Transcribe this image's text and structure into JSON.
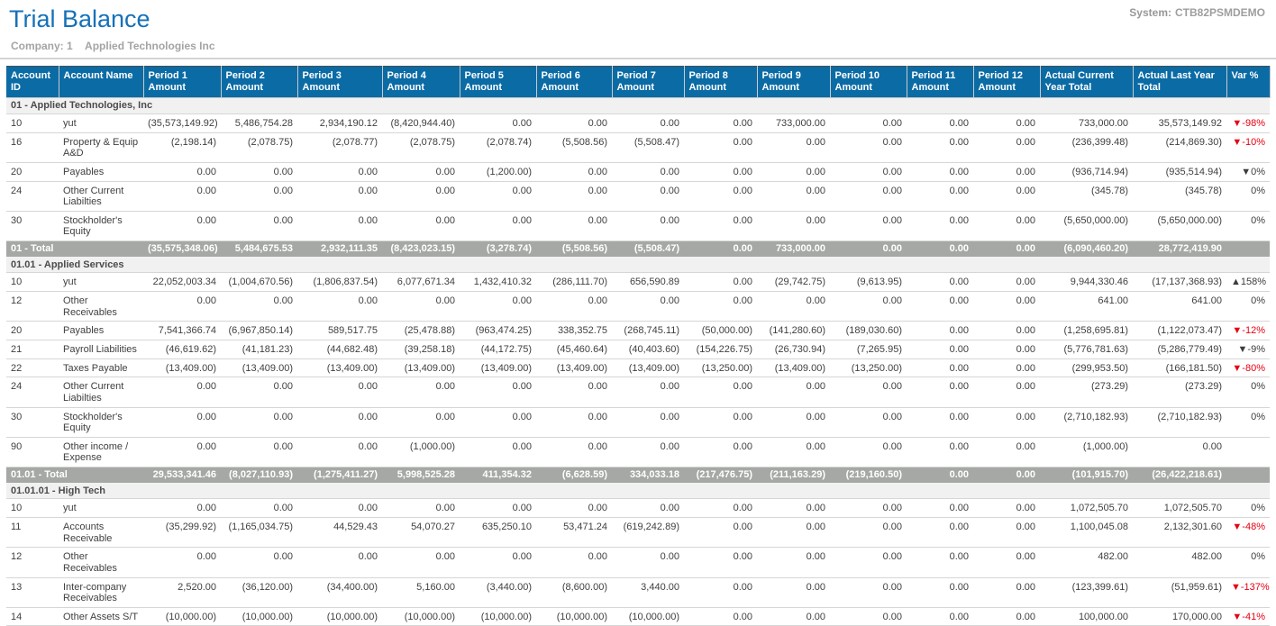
{
  "page": {
    "title": "Trial Balance",
    "system_label": "System:",
    "system_value": "CTB82PSMDEMO",
    "company_label": "Company:",
    "company_number": "1",
    "company_name": "Applied Technologies Inc"
  },
  "colors": {
    "title_blue": "#1571b8",
    "header_bg": "#0b6ba5",
    "total_row_bg": "#a5a8a5",
    "group_row_bg": "#f1f1f1",
    "negative_var_red": "#e60012",
    "muted_gray": "#a0a0a0"
  },
  "table": {
    "columns": [
      "Account ID",
      "Account Name",
      "Period 1 Amount",
      "Period 2 Amount",
      "Period 3 Amount",
      "Period 4 Amount",
      "Period 5 Amount",
      "Period 6 Amount",
      "Period 7 Amount",
      "Period 8 Amount",
      "Period 9 Amount",
      "Period 10 Amount",
      "Period 11 Amount",
      "Period 12 Amount",
      "Actual Current Year Total",
      "Actual Last Year Total",
      "Var %"
    ],
    "groups": [
      {
        "header": "01 - Applied Technologies, Inc",
        "rows": [
          {
            "id": "10",
            "name": "yut",
            "periods": [
              "(35,573,149.92)",
              "5,486,754.28",
              "2,934,190.12",
              "(8,420,944.40)",
              "0.00",
              "0.00",
              "0.00",
              "0.00",
              "733,000.00",
              "0.00",
              "0.00",
              "0.00"
            ],
            "current_year_total": "733,000.00",
            "last_year_total": "35,573,149.92",
            "var": {
              "text": "▼-98%",
              "red": true
            }
          },
          {
            "id": "16",
            "name": "Property & Equip A&D",
            "periods": [
              "(2,198.14)",
              "(2,078.75)",
              "(2,078.77)",
              "(2,078.75)",
              "(2,078.74)",
              "(5,508.56)",
              "(5,508.47)",
              "0.00",
              "0.00",
              "0.00",
              "0.00",
              "0.00"
            ],
            "current_year_total": "(236,399.48)",
            "last_year_total": "(214,869.30)",
            "var": {
              "text": "▼-10%",
              "red": true
            }
          },
          {
            "id": "20",
            "name": "Payables",
            "periods": [
              "0.00",
              "0.00",
              "0.00",
              "0.00",
              "(1,200.00)",
              "0.00",
              "0.00",
              "0.00",
              "0.00",
              "0.00",
              "0.00",
              "0.00"
            ],
            "current_year_total": "(936,714.94)",
            "last_year_total": "(935,514.94)",
            "var": {
              "text": "▼0%",
              "red": false
            }
          },
          {
            "id": "24",
            "name": "Other Current Liabilties",
            "periods": [
              "0.00",
              "0.00",
              "0.00",
              "0.00",
              "0.00",
              "0.00",
              "0.00",
              "0.00",
              "0.00",
              "0.00",
              "0.00",
              "0.00"
            ],
            "current_year_total": "(345.78)",
            "last_year_total": "(345.78)",
            "var": {
              "text": "0%",
              "red": false
            }
          },
          {
            "id": "30",
            "name": "Stockholder's Equity",
            "periods": [
              "0.00",
              "0.00",
              "0.00",
              "0.00",
              "0.00",
              "0.00",
              "0.00",
              "0.00",
              "0.00",
              "0.00",
              "0.00",
              "0.00"
            ],
            "current_year_total": "(5,650,000.00)",
            "last_year_total": "(5,650,000.00)",
            "var": {
              "text": "0%",
              "red": false
            }
          }
        ],
        "total": {
          "label": "01 - Total",
          "periods": [
            "(35,575,348.06)",
            "5,484,675.53",
            "2,932,111.35",
            "(8,423,023.15)",
            "(3,278.74)",
            "(5,508.56)",
            "(5,508.47)",
            "0.00",
            "733,000.00",
            "0.00",
            "0.00",
            "0.00"
          ],
          "current_year_total": "(6,090,460.20)",
          "last_year_total": "28,772,419.90",
          "var": null
        }
      },
      {
        "header": "01.01 - Applied Services",
        "rows": [
          {
            "id": "10",
            "name": "yut",
            "periods": [
              "22,052,003.34",
              "(1,004,670.56)",
              "(1,806,837.54)",
              "6,077,671.34",
              "1,432,410.32",
              "(286,111.70)",
              "656,590.89",
              "0.00",
              "(29,742.75)",
              "(9,613.95)",
              "0.00",
              "0.00"
            ],
            "current_year_total": "9,944,330.46",
            "last_year_total": "(17,137,368.93)",
            "var": {
              "text": "▲158%",
              "red": false
            }
          },
          {
            "id": "12",
            "name": "Other Receivables",
            "periods": [
              "0.00",
              "0.00",
              "0.00",
              "0.00",
              "0.00",
              "0.00",
              "0.00",
              "0.00",
              "0.00",
              "0.00",
              "0.00",
              "0.00"
            ],
            "current_year_total": "641.00",
            "last_year_total": "641.00",
            "var": {
              "text": "0%",
              "red": false
            }
          },
          {
            "id": "20",
            "name": "Payables",
            "periods": [
              "7,541,366.74",
              "(6,967,850.14)",
              "589,517.75",
              "(25,478.88)",
              "(963,474.25)",
              "338,352.75",
              "(268,745.11)",
              "(50,000.00)",
              "(141,280.60)",
              "(189,030.60)",
              "0.00",
              "0.00"
            ],
            "current_year_total": "(1,258,695.81)",
            "last_year_total": "(1,122,073.47)",
            "var": {
              "text": "▼-12%",
              "red": true
            }
          },
          {
            "id": "21",
            "name": "Payroll Liabilities",
            "periods": [
              "(46,619.62)",
              "(41,181.23)",
              "(44,682.48)",
              "(39,258.18)",
              "(44,172.75)",
              "(45,460.64)",
              "(40,403.60)",
              "(154,226.75)",
              "(26,730.94)",
              "(7,265.95)",
              "0.00",
              "0.00"
            ],
            "current_year_total": "(5,776,781.63)",
            "last_year_total": "(5,286,779.49)",
            "var": {
              "text": "▼-9%",
              "red": false
            }
          },
          {
            "id": "22",
            "name": "Taxes Payable",
            "periods": [
              "(13,409.00)",
              "(13,409.00)",
              "(13,409.00)",
              "(13,409.00)",
              "(13,409.00)",
              "(13,409.00)",
              "(13,409.00)",
              "(13,250.00)",
              "(13,409.00)",
              "(13,250.00)",
              "0.00",
              "0.00"
            ],
            "current_year_total": "(299,953.50)",
            "last_year_total": "(166,181.50)",
            "var": {
              "text": "▼-80%",
              "red": true
            }
          },
          {
            "id": "24",
            "name": "Other Current Liabilties",
            "periods": [
              "0.00",
              "0.00",
              "0.00",
              "0.00",
              "0.00",
              "0.00",
              "0.00",
              "0.00",
              "0.00",
              "0.00",
              "0.00",
              "0.00"
            ],
            "current_year_total": "(273.29)",
            "last_year_total": "(273.29)",
            "var": {
              "text": "0%",
              "red": false
            }
          },
          {
            "id": "30",
            "name": "Stockholder's Equity",
            "periods": [
              "0.00",
              "0.00",
              "0.00",
              "0.00",
              "0.00",
              "0.00",
              "0.00",
              "0.00",
              "0.00",
              "0.00",
              "0.00",
              "0.00"
            ],
            "current_year_total": "(2,710,182.93)",
            "last_year_total": "(2,710,182.93)",
            "var": {
              "text": "0%",
              "red": false
            }
          },
          {
            "id": "90",
            "name": "Other income / Expense",
            "periods": [
              "0.00",
              "0.00",
              "0.00",
              "(1,000.00)",
              "0.00",
              "0.00",
              "0.00",
              "0.00",
              "0.00",
              "0.00",
              "0.00",
              "0.00"
            ],
            "current_year_total": "(1,000.00)",
            "last_year_total": "0.00",
            "var": null
          }
        ],
        "total": {
          "label": "01.01 - Total",
          "periods": [
            "29,533,341.46",
            "(8,027,110.93)",
            "(1,275,411.27)",
            "5,998,525.28",
            "411,354.32",
            "(6,628.59)",
            "334,033.18",
            "(217,476.75)",
            "(211,163.29)",
            "(219,160.50)",
            "0.00",
            "0.00"
          ],
          "current_year_total": "(101,915.70)",
          "last_year_total": "(26,422,218.61)",
          "var": null
        }
      },
      {
        "header": "01.01.01 - High Tech",
        "rows": [
          {
            "id": "10",
            "name": "yut",
            "periods": [
              "0.00",
              "0.00",
              "0.00",
              "0.00",
              "0.00",
              "0.00",
              "0.00",
              "0.00",
              "0.00",
              "0.00",
              "0.00",
              "0.00"
            ],
            "current_year_total": "1,072,505.70",
            "last_year_total": "1,072,505.70",
            "var": {
              "text": "0%",
              "red": false
            }
          },
          {
            "id": "11",
            "name": "Accounts Receivable",
            "periods": [
              "(35,299.92)",
              "(1,165,034.75)",
              "44,529.43",
              "54,070.27",
              "635,250.10",
              "53,471.24",
              "(619,242.89)",
              "0.00",
              "0.00",
              "0.00",
              "0.00",
              "0.00"
            ],
            "current_year_total": "1,100,045.08",
            "last_year_total": "2,132,301.60",
            "var": {
              "text": "▼-48%",
              "red": true
            }
          },
          {
            "id": "12",
            "name": "Other Receivables",
            "periods": [
              "0.00",
              "0.00",
              "0.00",
              "0.00",
              "0.00",
              "0.00",
              "0.00",
              "0.00",
              "0.00",
              "0.00",
              "0.00",
              "0.00"
            ],
            "current_year_total": "482.00",
            "last_year_total": "482.00",
            "var": {
              "text": "0%",
              "red": false
            }
          },
          {
            "id": "13",
            "name": "Inter-company Receivables",
            "periods": [
              "2,520.00",
              "(36,120.00)",
              "(34,400.00)",
              "5,160.00",
              "(3,440.00)",
              "(8,600.00)",
              "3,440.00",
              "0.00",
              "0.00",
              "0.00",
              "0.00",
              "0.00"
            ],
            "current_year_total": "(123,399.61)",
            "last_year_total": "(51,959.61)",
            "var": {
              "text": "▼-137%",
              "red": true
            }
          },
          {
            "id": "14",
            "name": "Other Assets S/T",
            "periods": [
              "(10,000.00)",
              "(10,000.00)",
              "(10,000.00)",
              "(10,000.00)",
              "(10,000.00)",
              "(10,000.00)",
              "(10,000.00)",
              "0.00",
              "0.00",
              "0.00",
              "0.00",
              "0.00"
            ],
            "current_year_total": "100,000.00",
            "last_year_total": "170,000.00",
            "var": {
              "text": "▼-41%",
              "red": true
            }
          }
        ],
        "total": null
      }
    ]
  }
}
